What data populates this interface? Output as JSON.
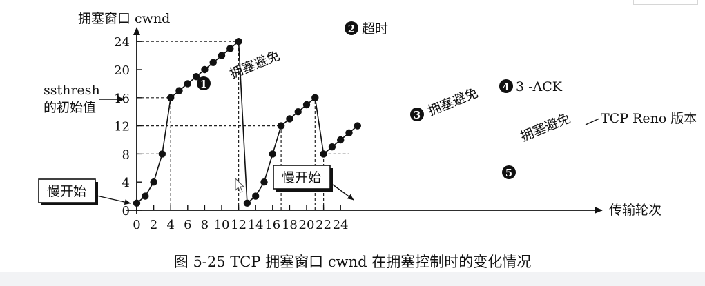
{
  "chart_data": {
    "type": "line",
    "ylabel": "拥塞窗口 cwnd",
    "xlabel": "传输轮次",
    "x_ticks": [
      "0",
      "2",
      "4",
      "6",
      "8",
      "10",
      "12",
      "14",
      "16",
      "18",
      "20",
      "22",
      "24"
    ],
    "y_ticks": [
      "0",
      "4",
      "8",
      "12",
      "16",
      "20",
      "24"
    ],
    "xlim": [
      0,
      26
    ],
    "ylim": [
      0,
      24
    ],
    "grid": false,
    "series": [
      {
        "points": [
          [
            0,
            1
          ],
          [
            1,
            2
          ],
          [
            2,
            4
          ],
          [
            3,
            8
          ],
          [
            4,
            16
          ],
          [
            5,
            17
          ],
          [
            6,
            18
          ],
          [
            7,
            19
          ],
          [
            8,
            20
          ],
          [
            9,
            21
          ],
          [
            10,
            22
          ],
          [
            11,
            23
          ],
          [
            12,
            24
          ],
          [
            13,
            1
          ],
          [
            14,
            2
          ],
          [
            15,
            4
          ],
          [
            16,
            8
          ],
          [
            17,
            12
          ],
          [
            18,
            13
          ],
          [
            19,
            14
          ],
          [
            20,
            15
          ],
          [
            21,
            16
          ],
          [
            22,
            8
          ],
          [
            23,
            9
          ],
          [
            24,
            10
          ],
          [
            25,
            11
          ],
          [
            26,
            12
          ]
        ]
      }
    ],
    "reference_lines": [
      {
        "y": 24,
        "x_to": 12
      },
      {
        "y": 16,
        "x_to": 4
      },
      {
        "y": 12,
        "x_to": 17
      },
      {
        "y": 8,
        "x_to": 3
      },
      {
        "y": 8,
        "x_from": 22,
        "x_to": 25
      },
      {
        "x": 4
      },
      {
        "x": 12
      },
      {
        "x": 17
      },
      {
        "x": 21
      },
      {
        "x": 22
      }
    ],
    "ssthresh_label_1": "ssthresh",
    "ssthresh_label_2": "的初始值",
    "slow_start_label": "慢开始",
    "congestion_avoidance_label": "拥塞避免",
    "marker_1": "1",
    "marker_2": "2",
    "marker_3": "3",
    "marker_4": "4",
    "marker_5": "5",
    "timeout_label": "超时",
    "three_ack_label": "3 -ACK",
    "reno_label": "TCP Reno 版本"
  },
  "caption": "图 5-25    TCP 拥塞窗口 cwnd 在拥塞控制时的变化情况"
}
